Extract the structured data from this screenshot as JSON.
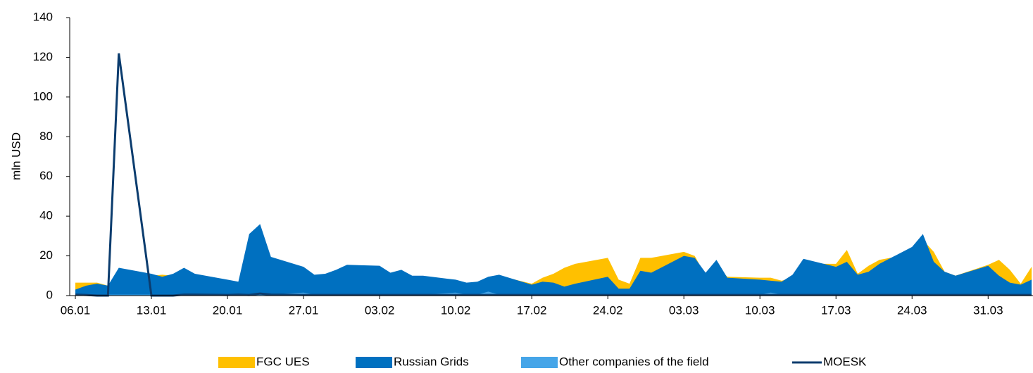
{
  "chart_data": {
    "type": "area",
    "y_label": "mln USD",
    "x": [
      0,
      1,
      2,
      3,
      4,
      7,
      8,
      9,
      10,
      11,
      14,
      15,
      16,
      17,
      18,
      21,
      22,
      23,
      24,
      25,
      28,
      29,
      30,
      31,
      32,
      35,
      36,
      37,
      38,
      39,
      42,
      43,
      44,
      45,
      46,
      49,
      50,
      51,
      52,
      53,
      56,
      57,
      58,
      59,
      60,
      63,
      64,
      65,
      66,
      67,
      70,
      71,
      72,
      73,
      74,
      77,
      78,
      79,
      80,
      81,
      84,
      85,
      86,
      87,
      88
    ],
    "xlim": [
      0,
      88
    ],
    "xticks": [
      {
        "value": 0,
        "label": "06.01"
      },
      {
        "value": 7,
        "label": "13.01"
      },
      {
        "value": 14,
        "label": "20.01"
      },
      {
        "value": 21,
        "label": "27.01"
      },
      {
        "value": 28,
        "label": "03.02"
      },
      {
        "value": 35,
        "label": "10.02"
      },
      {
        "value": 42,
        "label": "17.02"
      },
      {
        "value": 49,
        "label": "24.02"
      },
      {
        "value": 56,
        "label": "03.03"
      },
      {
        "value": 63,
        "label": "10.03"
      },
      {
        "value": 70,
        "label": "17.03"
      },
      {
        "value": 77,
        "label": "24.03"
      },
      {
        "value": 84,
        "label": "31.03"
      }
    ],
    "ylim": [
      0,
      140
    ],
    "yticks": [
      0,
      20,
      40,
      60,
      80,
      100,
      120,
      140
    ],
    "grid": false,
    "legend": "bottom",
    "series": [
      {
        "name": "FGC UES",
        "color": "#FFC000",
        "kind": "area",
        "values": [
          6.5,
          6.5,
          6.5,
          5,
          12,
          10,
          10.5,
          10,
          12,
          10,
          7,
          6,
          25,
          30,
          17,
          12,
          9,
          10,
          11,
          13,
          13,
          10,
          11,
          9,
          9,
          7,
          6,
          6,
          9,
          10,
          6,
          9,
          11,
          14,
          16,
          19,
          8,
          6,
          19,
          19,
          22,
          20,
          10,
          15,
          9.5,
          9,
          9,
          7.5,
          9,
          16,
          16,
          23,
          11,
          15,
          18,
          21,
          28,
          22,
          12,
          10,
          15.5,
          18,
          13,
          6,
          14.5
        ]
      },
      {
        "name": "Russian Grids",
        "color": "#0070C0",
        "kind": "area",
        "values": [
          3,
          5,
          6,
          5,
          14,
          11,
          9.5,
          11,
          14,
          11,
          8,
          7,
          31,
          36,
          19.5,
          14.5,
          10.5,
          11,
          13,
          15.5,
          15,
          11.5,
          13,
          10,
          10,
          8,
          6.5,
          7,
          9.5,
          10.5,
          5.5,
          7,
          6.5,
          4.5,
          6,
          9.5,
          3.5,
          3.5,
          12.5,
          11.5,
          20,
          19,
          11.5,
          18,
          9,
          8,
          7.5,
          7,
          10.5,
          18.5,
          14.5,
          17,
          10.5,
          12,
          16,
          24.5,
          31,
          17,
          12,
          10,
          15,
          10,
          6.5,
          5.5,
          8
        ]
      },
      {
        "name": "Other companies of the field",
        "color": "#45A5E8",
        "kind": "area",
        "values": [
          0.5,
          0.5,
          0.5,
          0.5,
          0.5,
          0.5,
          0.5,
          0.5,
          0.5,
          0.5,
          0.5,
          0.5,
          0.5,
          0.5,
          0.5,
          1.5,
          0.5,
          0.5,
          0.5,
          0.5,
          0.5,
          0.5,
          0.5,
          0.5,
          0.5,
          1.5,
          0.5,
          0.5,
          2,
          0.5,
          0.5,
          0.5,
          0.5,
          0.5,
          0.5,
          0.5,
          0.5,
          0.5,
          0.5,
          0.5,
          0.5,
          0.5,
          0.5,
          0.5,
          0.5,
          0.5,
          1.5,
          0.5,
          0.5,
          0.5,
          0.5,
          0.5,
          0.5,
          0.5,
          0.5,
          0.5,
          0.5,
          0.5,
          0.5,
          0.5,
          0.5,
          0.5,
          0.5,
          0.5,
          0.5
        ]
      },
      {
        "name": "MOESK",
        "color": "#0B3C6E",
        "kind": "line",
        "values": [
          0.5,
          0.3,
          0,
          0,
          122,
          0,
          0,
          0,
          0.5,
          0.5,
          0.3,
          0.5,
          0.3,
          1,
          0.5,
          0.3,
          0.3,
          0.3,
          0.3,
          0.3,
          0.3,
          0.3,
          0.3,
          0.3,
          0.3,
          0.3,
          0.3,
          0.3,
          0.3,
          0.3,
          0.3,
          0.3,
          0.3,
          0.3,
          0.3,
          0.3,
          0.3,
          0.3,
          0.3,
          0.3,
          0.3,
          0.3,
          0.3,
          0.3,
          0.3,
          0.3,
          0.3,
          0.3,
          0.3,
          0.3,
          0.3,
          0.3,
          0.3,
          0.3,
          0.3,
          0.3,
          0.3,
          0.3,
          0.3,
          0.3,
          0.3,
          0.3,
          0.3,
          0.3,
          0.3
        ]
      }
    ]
  }
}
